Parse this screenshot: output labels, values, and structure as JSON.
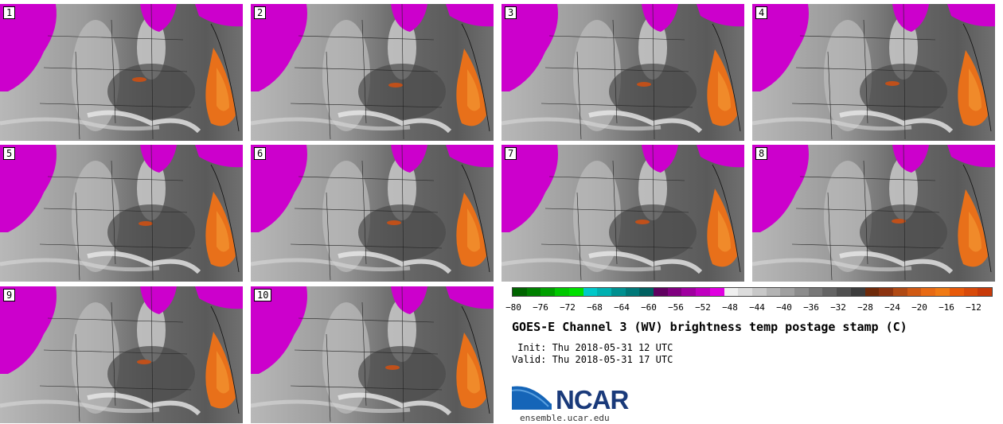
{
  "panels": [
    {
      "label": "1"
    },
    {
      "label": "2"
    },
    {
      "label": "3"
    },
    {
      "label": "4"
    },
    {
      "label": "5"
    },
    {
      "label": "6"
    },
    {
      "label": "7"
    },
    {
      "label": "8"
    },
    {
      "label": "9"
    },
    {
      "label": "10"
    }
  ],
  "colorbar": {
    "ticks": [
      "−80",
      "−76",
      "−72",
      "−68",
      "−64",
      "−60",
      "−56",
      "−52",
      "−48",
      "−44",
      "−40",
      "−36",
      "−32",
      "−28",
      "−24",
      "−20",
      "−16",
      "−12"
    ],
    "colors": [
      "#006400",
      "#008000",
      "#00a000",
      "#00c800",
      "#00e000",
      "#00c8c8",
      "#00b0b0",
      "#009090",
      "#007878",
      "#006060",
      "#600060",
      "#800080",
      "#a000a0",
      "#c000c0",
      "#e000e0",
      "#f0f0f0",
      "#dcdcdc",
      "#c8c8c8",
      "#b4b4b4",
      "#a0a0a0",
      "#8c8c8c",
      "#787878",
      "#646464",
      "#505050",
      "#3c3c3c",
      "#6e2a0a",
      "#8c3410",
      "#b04a14",
      "#d05a14",
      "#e86a14",
      "#f07a14",
      "#e85a0a",
      "#d84a0a",
      "#c83a0a"
    ]
  },
  "title": "GOES-E Channel 3 (WV) brightness temp postage stamp (C)",
  "init": " Init: Thu 2018-05-31 12 UTC",
  "valid": "Valid: Thu 2018-05-31 17 UTC",
  "logo_text": "NCAR",
  "site": "ensemble.ucar.edu"
}
